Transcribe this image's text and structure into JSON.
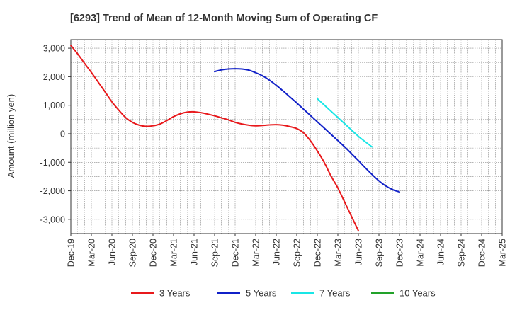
{
  "chart_data": {
    "type": "line",
    "title": "[6293]  Trend of Mean of 12-Month Moving Sum of Operating CF",
    "xlabel": "",
    "ylabel": "Amount (million yen)",
    "ylim": [
      -3500,
      3300
    ],
    "yticks": [
      3000,
      2000,
      1000,
      0,
      -1000,
      -2000,
      -3000
    ],
    "ytick_labels": [
      "3,000",
      "2,000",
      "1,000",
      "0",
      "-1,000",
      "-2,000",
      "-3,000"
    ],
    "x_tick_labels": [
      "Dec-19",
      "Mar-20",
      "Jun-20",
      "Sep-20",
      "Dec-20",
      "Mar-21",
      "Jun-21",
      "Sep-21",
      "Dec-21",
      "Mar-22",
      "Jun-22",
      "Sep-22",
      "Dec-22",
      "Mar-23",
      "Jun-23",
      "Sep-23",
      "Dec-23",
      "Mar-24",
      "Jun-24",
      "Sep-24",
      "Dec-24",
      "Mar-25"
    ],
    "grid": true,
    "legend_position": "bottom",
    "series": [
      {
        "name": "3 Years",
        "color": "#e8191c",
        "start_index": 0,
        "values": [
          3100,
          2800,
          2470,
          2150,
          1810,
          1470,
          1120,
          830,
          570,
          400,
          300,
          260,
          280,
          340,
          460,
          600,
          700,
          760,
          770,
          740,
          690,
          630,
          560,
          490,
          400,
          340,
          300,
          280,
          290,
          310,
          320,
          300,
          250,
          180,
          30,
          -250,
          -600,
          -1000,
          -1480,
          -1900,
          -2400,
          -2900,
          -3400
        ]
      },
      {
        "name": "5 Years",
        "color": "#1020c8",
        "start_index": 21,
        "values": [
          2180,
          2240,
          2270,
          2280,
          2270,
          2230,
          2140,
          2030,
          1880,
          1700,
          1500,
          1290,
          1080,
          860,
          640,
          420,
          200,
          -20,
          -240,
          -460,
          -700,
          -940,
          -1190,
          -1430,
          -1650,
          -1830,
          -1960,
          -2040
        ]
      },
      {
        "name": "7 Years",
        "color": "#19e6e6",
        "start_index": 36,
        "values": [
          1230,
          1010,
          790,
          570,
          350,
          130,
          -90,
          -280,
          -460
        ]
      },
      {
        "name": "10 Years",
        "color": "#22a22a",
        "start_index": 0,
        "values": []
      }
    ]
  }
}
